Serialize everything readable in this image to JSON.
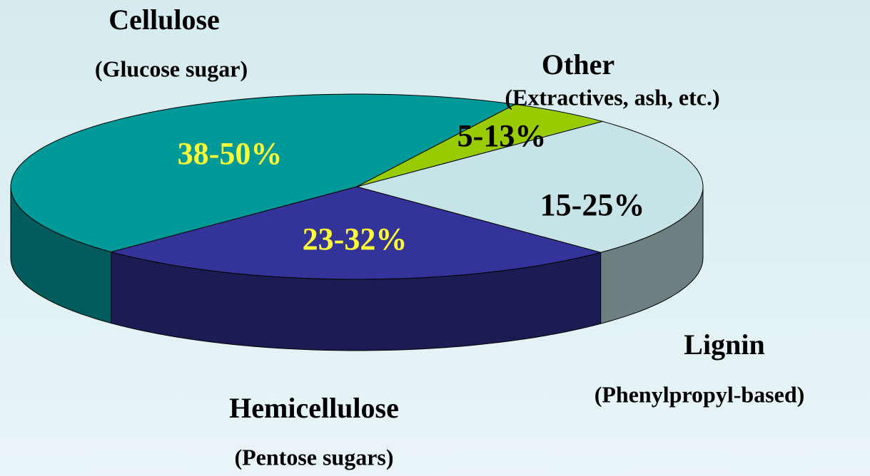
{
  "chart_data": {
    "type": "pie",
    "categories": [
      "Cellulose",
      "Hemicellulose",
      "Lignin",
      "Other"
    ],
    "descriptions": [
      "(Glucose sugar)",
      "(Pentose sugars)",
      "(Phenylpropyl-based)",
      "(Extractives, ash, etc.)"
    ],
    "values": [
      45,
      25,
      25,
      5
    ],
    "value_labels": [
      "38-50%",
      "23-32%",
      "15-25%",
      "5-13%"
    ],
    "colors": [
      "#009999",
      "#333399",
      "#c6e4e8",
      "#99cc00"
    ],
    "side_colors": [
      "#005c5c",
      "#1c1c55",
      "#6e7f80",
      "#5e7d00"
    ],
    "value_label_colors": [
      "#ffff33",
      "#ffff33",
      "#000000",
      "#000000"
    ]
  }
}
